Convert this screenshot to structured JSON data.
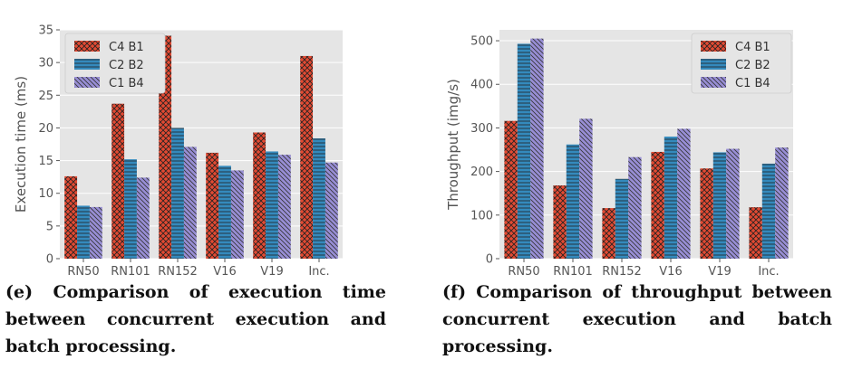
{
  "chart_data": [
    {
      "type": "bar",
      "panel": "e",
      "categories": [
        "RN50",
        "RN101",
        "RN152",
        "V16",
        "V19",
        "Inc."
      ],
      "series": [
        {
          "name": "C4 B1",
          "values": [
            12.6,
            23.7,
            34.1,
            16.2,
            19.3,
            31.0
          ]
        },
        {
          "name": "C2 B2",
          "values": [
            8.1,
            15.2,
            20.0,
            14.2,
            16.4,
            18.4
          ]
        },
        {
          "name": "C1 B4",
          "values": [
            7.9,
            12.4,
            17.1,
            13.5,
            15.9,
            14.7
          ]
        }
      ],
      "ylabel": "Execution time (ms)",
      "ylim": [
        0,
        35
      ],
      "yticks": [
        0,
        5,
        10,
        15,
        20,
        25,
        30,
        35
      ],
      "grid": true,
      "legend_position": "top-left",
      "caption": "(e) Comparison of execution time between concurrent execution and batch processing."
    },
    {
      "type": "bar",
      "panel": "f",
      "categories": [
        "RN50",
        "RN101",
        "RN152",
        "V16",
        "V19",
        "Inc."
      ],
      "series": [
        {
          "name": "C4 B1",
          "values": [
            316,
            168,
            116,
            245,
            207,
            118
          ]
        },
        {
          "name": "C2 B2",
          "values": [
            493,
            262,
            183,
            280,
            244,
            218
          ]
        },
        {
          "name": "C1 B4",
          "values": [
            505,
            321,
            233,
            298,
            252,
            255
          ]
        }
      ],
      "ylabel": "Throughput (img/s)",
      "ylim": [
        0,
        525
      ],
      "yticks": [
        0,
        100,
        200,
        300,
        400,
        500
      ],
      "grid": true,
      "legend_position": "top-right",
      "caption": "(f) Comparison of throughput between concurrent execution and batch processing."
    }
  ],
  "colors": {
    "c4b1": "#e24a33",
    "c2b2": "#348abd",
    "c1b4": "#988ed5",
    "plot_bg": "#e5e5e5",
    "grid": "#ffffff",
    "tick_text": "#555555"
  }
}
